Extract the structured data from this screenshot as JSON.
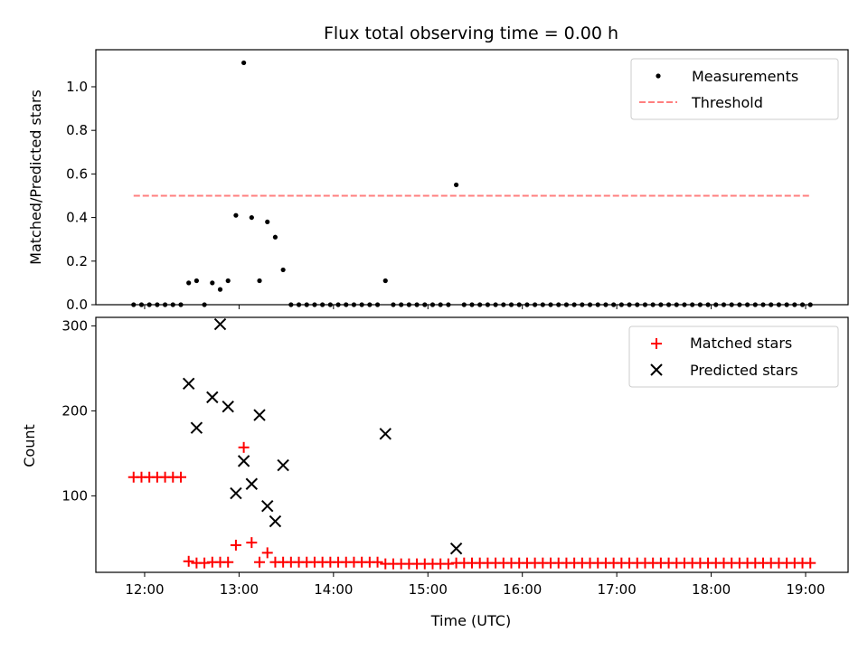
{
  "chart_data": [
    {
      "type": "scatter",
      "title": "Flux total observing time = 0.00 h",
      "xlabel": "",
      "ylabel": "Matched/Predicted stars",
      "xlim": [
        "11:29",
        "19:27"
      ],
      "ylim": [
        0,
        1.17
      ],
      "x_ticks": [
        "12:00",
        "13:00",
        "14:00",
        "15:00",
        "16:00",
        "17:00",
        "18:00",
        "19:00"
      ],
      "y_ticks": [
        0.0,
        0.2,
        0.4,
        0.6,
        0.8,
        1.0
      ],
      "y_tick_labels": [
        "0.0",
        "0.2",
        "0.4",
        "0.6",
        "0.8",
        "1.0"
      ],
      "x_tick_labels_visible": false,
      "legend": {
        "position": "upper right",
        "entries": [
          {
            "label": "Measurements",
            "marker": "dot",
            "color": "#000000"
          },
          {
            "label": "Threshold",
            "marker": "dashed-line",
            "color": "#ff7f7f"
          }
        ]
      },
      "series": [
        {
          "name": "Measurements",
          "marker": "dot",
          "color": "#000000",
          "points": [
            [
              "11:53",
              0
            ],
            [
              "11:58",
              0
            ],
            [
              "12:03",
              0
            ],
            [
              "12:08",
              0
            ],
            [
              "12:13",
              0
            ],
            [
              "12:18",
              0
            ],
            [
              "12:23",
              0
            ],
            [
              "12:28",
              0.1
            ],
            [
              "12:33",
              0.11
            ],
            [
              "12:38",
              0
            ],
            [
              "12:43",
              0.1
            ],
            [
              "12:48",
              0.07
            ],
            [
              "12:53",
              0.11
            ],
            [
              "12:58",
              0.41
            ],
            [
              "13:03",
              1.11
            ],
            [
              "13:08",
              0.4
            ],
            [
              "13:13",
              0.11
            ],
            [
              "13:18",
              0.38
            ],
            [
              "13:23",
              0.31
            ],
            [
              "13:28",
              0.16
            ],
            [
              "13:33",
              0
            ],
            [
              "13:38",
              0
            ],
            [
              "13:43",
              0
            ],
            [
              "13:48",
              0
            ],
            [
              "13:53",
              0
            ],
            [
              "13:58",
              0
            ],
            [
              "14:03",
              0
            ],
            [
              "14:08",
              0
            ],
            [
              "14:13",
              0
            ],
            [
              "14:18",
              0
            ],
            [
              "14:23",
              0
            ],
            [
              "14:28",
              0
            ],
            [
              "14:33",
              0.11
            ],
            [
              "14:38",
              0
            ],
            [
              "14:43",
              0
            ],
            [
              "14:48",
              0
            ],
            [
              "14:53",
              0
            ],
            [
              "14:58",
              0
            ],
            [
              "15:03",
              0
            ],
            [
              "15:08",
              0
            ],
            [
              "15:13",
              0
            ],
            [
              "15:18",
              0.55
            ],
            [
              "15:23",
              0
            ],
            [
              "15:28",
              0
            ],
            [
              "15:33",
              0
            ],
            [
              "15:38",
              0
            ],
            [
              "15:43",
              0
            ],
            [
              "15:48",
              0
            ],
            [
              "15:53",
              0
            ],
            [
              "15:58",
              0
            ],
            [
              "16:03",
              0
            ],
            [
              "16:08",
              0
            ],
            [
              "16:13",
              0
            ],
            [
              "16:18",
              0
            ],
            [
              "16:23",
              0
            ],
            [
              "16:28",
              0
            ],
            [
              "16:33",
              0
            ],
            [
              "16:38",
              0
            ],
            [
              "16:43",
              0
            ],
            [
              "16:48",
              0
            ],
            [
              "16:53",
              0
            ],
            [
              "16:58",
              0
            ],
            [
              "17:03",
              0
            ],
            [
              "17:08",
              0
            ],
            [
              "17:13",
              0
            ],
            [
              "17:18",
              0
            ],
            [
              "17:23",
              0
            ],
            [
              "17:28",
              0
            ],
            [
              "17:33",
              0
            ],
            [
              "17:38",
              0
            ],
            [
              "17:43",
              0
            ],
            [
              "17:48",
              0
            ],
            [
              "17:53",
              0
            ],
            [
              "17:58",
              0
            ],
            [
              "18:03",
              0
            ],
            [
              "18:08",
              0
            ],
            [
              "18:13",
              0
            ],
            [
              "18:18",
              0
            ],
            [
              "18:23",
              0
            ],
            [
              "18:28",
              0
            ],
            [
              "18:33",
              0
            ],
            [
              "18:38",
              0
            ],
            [
              "18:43",
              0
            ],
            [
              "18:48",
              0
            ],
            [
              "18:53",
              0
            ],
            [
              "18:58",
              0
            ],
            [
              "19:03",
              0
            ]
          ]
        },
        {
          "name": "Threshold",
          "style": "dashed",
          "color": "#ff7f7f",
          "points": [
            [
              "11:53",
              0.5
            ],
            [
              "19:03",
              0.5
            ]
          ]
        }
      ]
    },
    {
      "type": "scatter",
      "title": "",
      "xlabel": "Time (UTC)",
      "ylabel": "Count",
      "xlim": [
        "11:29",
        "19:27"
      ],
      "ylim": [
        10,
        310
      ],
      "x_ticks": [
        "12:00",
        "13:00",
        "14:00",
        "15:00",
        "16:00",
        "17:00",
        "18:00",
        "19:00"
      ],
      "x_tick_labels": [
        "12:00",
        "13:00",
        "14:00",
        "15:00",
        "16:00",
        "17:00",
        "18:00",
        "19:00"
      ],
      "y_ticks": [
        100,
        200,
        300
      ],
      "y_tick_labels": [
        "100",
        "200",
        "300"
      ],
      "legend": {
        "position": "upper right",
        "entries": [
          {
            "label": "Matched stars",
            "marker": "plus",
            "color": "#ff0000"
          },
          {
            "label": "Predicted stars",
            "marker": "x",
            "color": "#000000"
          }
        ]
      },
      "series": [
        {
          "name": "Matched stars",
          "marker": "plus",
          "color": "#ff0000",
          "points": [
            [
              "11:53",
              122
            ],
            [
              "11:58",
              122
            ],
            [
              "12:03",
              122
            ],
            [
              "12:08",
              122
            ],
            [
              "12:13",
              122
            ],
            [
              "12:18",
              122
            ],
            [
              "12:23",
              122
            ],
            [
              "12:28",
              23
            ],
            [
              "12:33",
              21
            ],
            [
              "12:38",
              21
            ],
            [
              "12:43",
              22
            ],
            [
              "12:48",
              22
            ],
            [
              "12:53",
              22
            ],
            [
              "12:58",
              42
            ],
            [
              "13:03",
              157
            ],
            [
              "13:08",
              45
            ],
            [
              "13:13",
              22
            ],
            [
              "13:18",
              33
            ],
            [
              "13:23",
              22
            ],
            [
              "13:28",
              22
            ],
            [
              "13:33",
              22
            ],
            [
              "13:38",
              22
            ],
            [
              "13:43",
              22
            ],
            [
              "13:48",
              22
            ],
            [
              "13:53",
              22
            ],
            [
              "13:58",
              22
            ],
            [
              "14:03",
              22
            ],
            [
              "14:08",
              22
            ],
            [
              "14:13",
              22
            ],
            [
              "14:18",
              22
            ],
            [
              "14:23",
              22
            ],
            [
              "14:28",
              22
            ],
            [
              "14:33",
              20
            ],
            [
              "14:38",
              20
            ],
            [
              "14:43",
              20
            ],
            [
              "14:48",
              20
            ],
            [
              "14:53",
              20
            ],
            [
              "14:58",
              20
            ],
            [
              "15:03",
              20
            ],
            [
              "15:08",
              20
            ],
            [
              "15:13",
              20
            ],
            [
              "15:18",
              21
            ],
            [
              "15:23",
              21
            ],
            [
              "15:28",
              21
            ],
            [
              "15:33",
              21
            ],
            [
              "15:38",
              21
            ],
            [
              "15:43",
              21
            ],
            [
              "15:48",
              21
            ],
            [
              "15:53",
              21
            ],
            [
              "15:58",
              21
            ],
            [
              "16:03",
              21
            ],
            [
              "16:08",
              21
            ],
            [
              "16:13",
              21
            ],
            [
              "16:18",
              21
            ],
            [
              "16:23",
              21
            ],
            [
              "16:28",
              21
            ],
            [
              "16:33",
              21
            ],
            [
              "16:38",
              21
            ],
            [
              "16:43",
              21
            ],
            [
              "16:48",
              21
            ],
            [
              "16:53",
              21
            ],
            [
              "16:58",
              21
            ],
            [
              "17:03",
              21
            ],
            [
              "17:08",
              21
            ],
            [
              "17:13",
              21
            ],
            [
              "17:18",
              21
            ],
            [
              "17:23",
              21
            ],
            [
              "17:28",
              21
            ],
            [
              "17:33",
              21
            ],
            [
              "17:38",
              21
            ],
            [
              "17:43",
              21
            ],
            [
              "17:48",
              21
            ],
            [
              "17:53",
              21
            ],
            [
              "17:58",
              21
            ],
            [
              "18:03",
              21
            ],
            [
              "18:08",
              21
            ],
            [
              "18:13",
              21
            ],
            [
              "18:18",
              21
            ],
            [
              "18:23",
              21
            ],
            [
              "18:28",
              21
            ],
            [
              "18:33",
              21
            ],
            [
              "18:38",
              21
            ],
            [
              "18:43",
              21
            ],
            [
              "18:48",
              21
            ],
            [
              "18:53",
              21
            ],
            [
              "18:58",
              21
            ],
            [
              "19:03",
              21
            ]
          ]
        },
        {
          "name": "Predicted stars",
          "marker": "x",
          "color": "#000000",
          "points": [
            [
              "12:28",
              232
            ],
            [
              "12:33",
              180
            ],
            [
              "12:43",
              216
            ],
            [
              "12:48",
              302
            ],
            [
              "12:53",
              205
            ],
            [
              "12:58",
              103
            ],
            [
              "13:03",
              141
            ],
            [
              "13:08",
              114
            ],
            [
              "13:13",
              195
            ],
            [
              "13:18",
              88
            ],
            [
              "13:23",
              70
            ],
            [
              "13:28",
              136
            ],
            [
              "14:33",
              173
            ],
            [
              "15:18",
              38
            ]
          ]
        }
      ]
    }
  ]
}
